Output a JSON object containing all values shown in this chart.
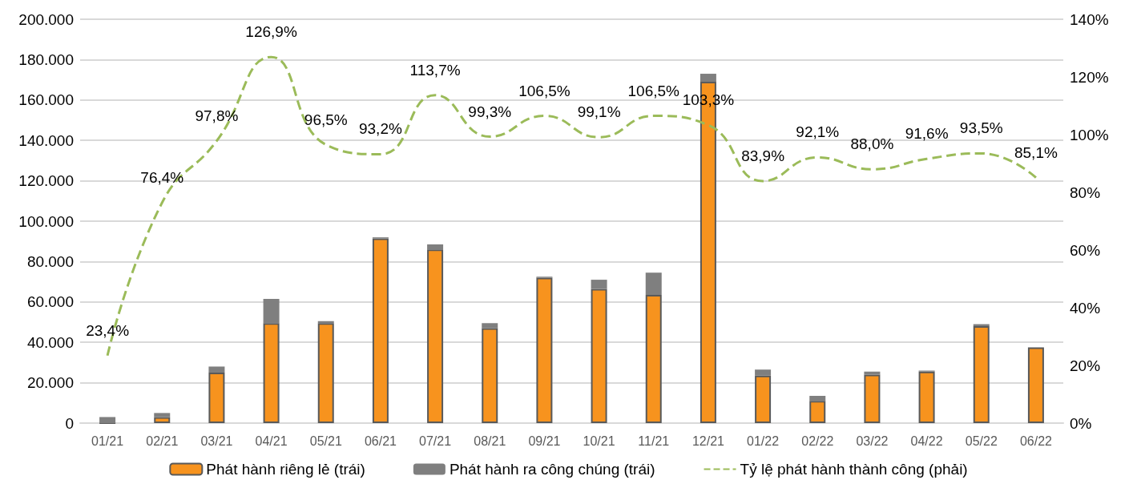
{
  "chart_data": {
    "type": "bar",
    "stacked": true,
    "grid": "y",
    "legend": "bottom",
    "categories": [
      "01/21",
      "02/21",
      "03/21",
      "04/21",
      "05/21",
      "06/21",
      "07/21",
      "08/21",
      "09/21",
      "10/21",
      "11/21",
      "12/21",
      "01/22",
      "02/22",
      "03/22",
      "04/22",
      "05/22",
      "06/22"
    ],
    "series": [
      {
        "name": "Phát hành riêng lẻ (trái)",
        "color": "#f7931e",
        "values": [
          0,
          3000,
          25000,
          49500,
          49500,
          91500,
          86000,
          47000,
          72000,
          66500,
          63500,
          169000,
          23500,
          11000,
          24000,
          25500,
          48000,
          37500
        ]
      },
      {
        "name": "Phát hành ra công chúng (trái)",
        "color": "#7f7f7f",
        "values": [
          3000,
          2000,
          3000,
          12000,
          1000,
          500,
          2500,
          2500,
          500,
          4500,
          11000,
          4000,
          3000,
          2500,
          1500,
          500,
          1000,
          0
        ]
      },
      {
        "name": "Tỷ lệ phát hành thành công (phải)",
        "type": "line",
        "axis": "y2",
        "color": "#9bbb59",
        "line_style": "dashed",
        "marker": "none",
        "values": [
          23.4,
          76.4,
          97.8,
          126.9,
          96.5,
          93.2,
          113.7,
          99.3,
          106.5,
          99.1,
          106.5,
          103.3,
          83.9,
          92.1,
          88.0,
          91.6,
          93.5,
          85.1
        ],
        "value_labels": [
          "23,4%",
          "76,4%",
          "97,8%",
          "126,9%",
          "96,5%",
          "93,2%",
          "113,7%",
          "99,3%",
          "106,5%",
          "99,1%",
          "106,5%",
          "103,3%",
          "83,9%",
          "92,1%",
          "88,0%",
          "91,6%",
          "93,5%",
          "85,1%"
        ]
      }
    ],
    "ylim": [
      0,
      200000
    ],
    "yticks": [
      {
        "value": 0,
        "label": "0"
      },
      {
        "value": 20000,
        "label": "20.000"
      },
      {
        "value": 40000,
        "label": "40.000"
      },
      {
        "value": 60000,
        "label": "60.000"
      },
      {
        "value": 80000,
        "label": "80.000"
      },
      {
        "value": 100000,
        "label": "100.000"
      },
      {
        "value": 120000,
        "label": "120.000"
      },
      {
        "value": 140000,
        "label": "140.000"
      },
      {
        "value": 160000,
        "label": "160.000"
      },
      {
        "value": 180000,
        "label": "180.000"
      },
      {
        "value": 200000,
        "label": "200.000"
      }
    ],
    "y2lim": [
      0,
      140
    ],
    "y2ticks": [
      {
        "value": 0,
        "label": "0%"
      },
      {
        "value": 20,
        "label": "20%"
      },
      {
        "value": 40,
        "label": "40%"
      },
      {
        "value": 60,
        "label": "60%"
      },
      {
        "value": 80,
        "label": "80%"
      },
      {
        "value": 100,
        "label": "100%"
      },
      {
        "value": 120,
        "label": "120%"
      },
      {
        "value": 140,
        "label": "140%"
      }
    ]
  }
}
